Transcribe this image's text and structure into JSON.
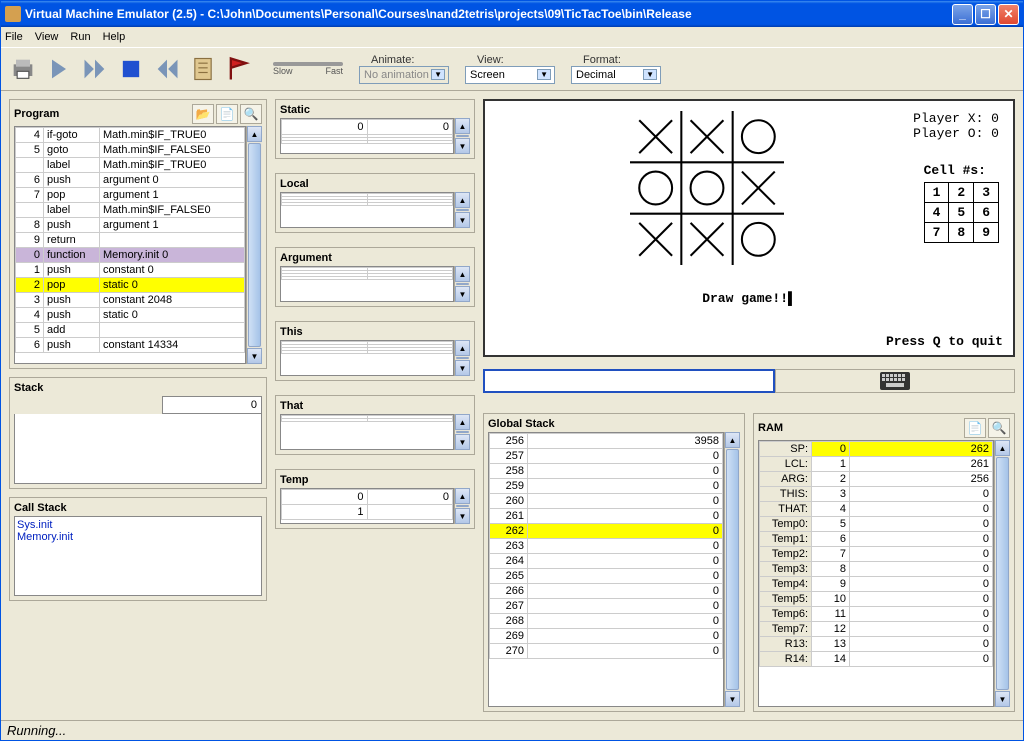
{
  "window": {
    "title": "Virtual Machine Emulator (2.5) - C:\\John\\Documents\\Personal\\Courses\\nand2tetris\\projects\\09\\TicTacToe\\bin\\Release"
  },
  "menu": {
    "file": "File",
    "view": "View",
    "run": "Run",
    "help": "Help"
  },
  "toolbar": {
    "animate_label": "Animate:",
    "animate_value": "No animation",
    "slow": "Slow",
    "fast": "Fast",
    "view_label": "View:",
    "view_value": "Screen",
    "format_label": "Format:",
    "format_value": "Decimal"
  },
  "program": {
    "title": "Program",
    "rows": [
      {
        "n": "4",
        "op": "if-goto",
        "arg": "Math.min$IF_TRUE0",
        "hl": ""
      },
      {
        "n": "5",
        "op": "goto",
        "arg": "Math.min$IF_FALSE0",
        "hl": ""
      },
      {
        "n": "",
        "op": "label",
        "arg": "Math.min$IF_TRUE0",
        "hl": ""
      },
      {
        "n": "6",
        "op": "push",
        "arg": "argument 0",
        "hl": ""
      },
      {
        "n": "7",
        "op": "pop",
        "arg": "argument 1",
        "hl": ""
      },
      {
        "n": "",
        "op": "label",
        "arg": "Math.min$IF_FALSE0",
        "hl": ""
      },
      {
        "n": "8",
        "op": "push",
        "arg": "argument 1",
        "hl": ""
      },
      {
        "n": "9",
        "op": "return",
        "arg": "",
        "hl": ""
      },
      {
        "n": "0",
        "op": "function",
        "arg": "Memory.init 0",
        "hl": "purple"
      },
      {
        "n": "1",
        "op": "push",
        "arg": "constant 0",
        "hl": ""
      },
      {
        "n": "2",
        "op": "pop",
        "arg": "static 0",
        "hl": "yellow"
      },
      {
        "n": "3",
        "op": "push",
        "arg": "constant 2048",
        "hl": ""
      },
      {
        "n": "4",
        "op": "push",
        "arg": "static 0",
        "hl": ""
      },
      {
        "n": "5",
        "op": "add",
        "arg": "",
        "hl": ""
      },
      {
        "n": "6",
        "op": "push",
        "arg": "constant 14334",
        "hl": ""
      }
    ]
  },
  "stack": {
    "title": "Stack",
    "value": "0"
  },
  "callstack": {
    "title": "Call Stack",
    "items": [
      "Sys.init",
      "Memory.init"
    ]
  },
  "segments": {
    "static": {
      "title": "Static",
      "rows": [
        [
          "0",
          "0"
        ],
        [
          "",
          ""
        ],
        [
          "",
          ""
        ],
        [
          "",
          ""
        ]
      ]
    },
    "local": {
      "title": "Local",
      "rows": [
        [
          "",
          ""
        ],
        [
          "",
          ""
        ],
        [
          "",
          ""
        ],
        [
          "",
          ""
        ]
      ]
    },
    "argument": {
      "title": "Argument",
      "rows": [
        [
          "",
          ""
        ],
        [
          "",
          ""
        ],
        [
          "",
          ""
        ],
        [
          "",
          ""
        ]
      ]
    },
    "this": {
      "title": "This",
      "rows": [
        [
          "",
          ""
        ],
        [
          "",
          ""
        ],
        [
          "",
          ""
        ],
        [
          "",
          ""
        ]
      ]
    },
    "that": {
      "title": "That",
      "rows": [
        [
          "",
          ""
        ],
        [
          "",
          ""
        ]
      ]
    },
    "temp": {
      "title": "Temp",
      "rows": [
        [
          "0",
          "0"
        ],
        [
          "1",
          ""
        ]
      ]
    }
  },
  "screen": {
    "player_x": "Player X: 0",
    "player_o": "Player O: 0",
    "cell_label": "Cell #s:",
    "cells": [
      [
        "1",
        "2",
        "3"
      ],
      [
        "4",
        "5",
        "6"
      ],
      [
        "7",
        "8",
        "9"
      ]
    ],
    "board": [
      "X",
      "X",
      "O",
      "O",
      "O",
      "X",
      "X",
      "X",
      "O"
    ],
    "draw": "Draw game!!▌",
    "quit": "Press Q to quit"
  },
  "global_stack": {
    "title": "Global Stack",
    "rows": [
      {
        "addr": "256",
        "val": "3958",
        "hl": ""
      },
      {
        "addr": "257",
        "val": "0",
        "hl": ""
      },
      {
        "addr": "258",
        "val": "0",
        "hl": ""
      },
      {
        "addr": "259",
        "val": "0",
        "hl": ""
      },
      {
        "addr": "260",
        "val": "0",
        "hl": ""
      },
      {
        "addr": "261",
        "val": "0",
        "hl": ""
      },
      {
        "addr": "262",
        "val": "0",
        "hl": "yellow"
      },
      {
        "addr": "263",
        "val": "0",
        "hl": ""
      },
      {
        "addr": "264",
        "val": "0",
        "hl": ""
      },
      {
        "addr": "265",
        "val": "0",
        "hl": ""
      },
      {
        "addr": "266",
        "val": "0",
        "hl": ""
      },
      {
        "addr": "267",
        "val": "0",
        "hl": ""
      },
      {
        "addr": "268",
        "val": "0",
        "hl": ""
      },
      {
        "addr": "269",
        "val": "0",
        "hl": ""
      },
      {
        "addr": "270",
        "val": "0",
        "hl": ""
      }
    ]
  },
  "ram": {
    "title": "RAM",
    "rows": [
      {
        "label": "SP:",
        "addr": "0",
        "val": "262",
        "hl": "yellow"
      },
      {
        "label": "LCL:",
        "addr": "1",
        "val": "261",
        "hl": ""
      },
      {
        "label": "ARG:",
        "addr": "2",
        "val": "256",
        "hl": ""
      },
      {
        "label": "THIS:",
        "addr": "3",
        "val": "0",
        "hl": ""
      },
      {
        "label": "THAT:",
        "addr": "4",
        "val": "0",
        "hl": ""
      },
      {
        "label": "Temp0:",
        "addr": "5",
        "val": "0",
        "hl": ""
      },
      {
        "label": "Temp1:",
        "addr": "6",
        "val": "0",
        "hl": ""
      },
      {
        "label": "Temp2:",
        "addr": "7",
        "val": "0",
        "hl": ""
      },
      {
        "label": "Temp3:",
        "addr": "8",
        "val": "0",
        "hl": ""
      },
      {
        "label": "Temp4:",
        "addr": "9",
        "val": "0",
        "hl": ""
      },
      {
        "label": "Temp5:",
        "addr": "10",
        "val": "0",
        "hl": ""
      },
      {
        "label": "Temp6:",
        "addr": "11",
        "val": "0",
        "hl": ""
      },
      {
        "label": "Temp7:",
        "addr": "12",
        "val": "0",
        "hl": ""
      },
      {
        "label": "R13:",
        "addr": "13",
        "val": "0",
        "hl": ""
      },
      {
        "label": "R14:",
        "addr": "14",
        "val": "0",
        "hl": ""
      }
    ]
  },
  "status": "Running..."
}
